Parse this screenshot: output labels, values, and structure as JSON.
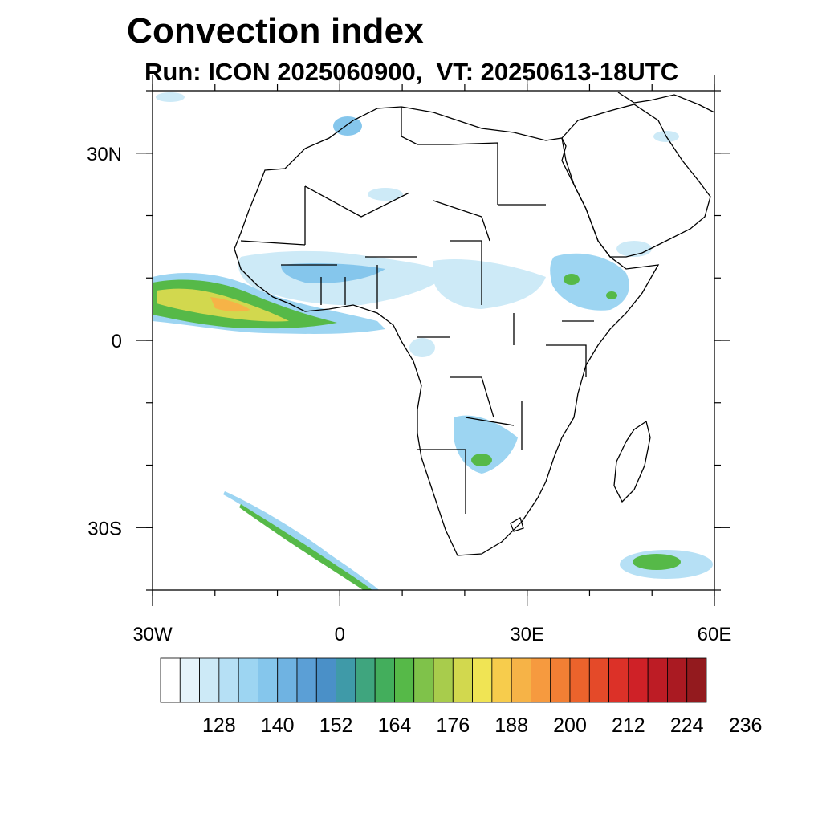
{
  "title": "Convection index",
  "subtitle": "Run: ICON 2025060900,  VT: 20250613-18UTC",
  "map": {
    "lon_range": [
      -30,
      60
    ],
    "lat_range": [
      -40,
      40
    ],
    "lon_ticks": [
      {
        "value": -30,
        "label": "30W"
      },
      {
        "value": 0,
        "label": "0"
      },
      {
        "value": 30,
        "label": "30E"
      },
      {
        "value": 60,
        "label": "60E"
      }
    ],
    "lat_ticks": [
      {
        "value": 30,
        "label": "30N"
      },
      {
        "value": 0,
        "label": "0"
      },
      {
        "value": -30,
        "label": "30S"
      }
    ]
  },
  "colorbar": {
    "colors": [
      "#ffffff",
      "#e6f4fb",
      "#cdeaf7",
      "#b6e0f5",
      "#9dd5f2",
      "#85c6ec",
      "#6fb3e2",
      "#5b9fd6",
      "#4a90c8",
      "#3f9aa8",
      "#3fa57e",
      "#43ae5c",
      "#56b948",
      "#7fc24a",
      "#a8cc4c",
      "#d2d84e",
      "#f0e454",
      "#f7cc4c",
      "#f6b347",
      "#f69a3f",
      "#f27f34",
      "#ec632c",
      "#e44a29",
      "#dc3128",
      "#cf2127",
      "#bd1c25",
      "#aa1a22",
      "#931a1e"
    ],
    "labels": [
      "128",
      "140",
      "152",
      "164",
      "176",
      "188",
      "200",
      "212",
      "224",
      "236"
    ]
  }
}
